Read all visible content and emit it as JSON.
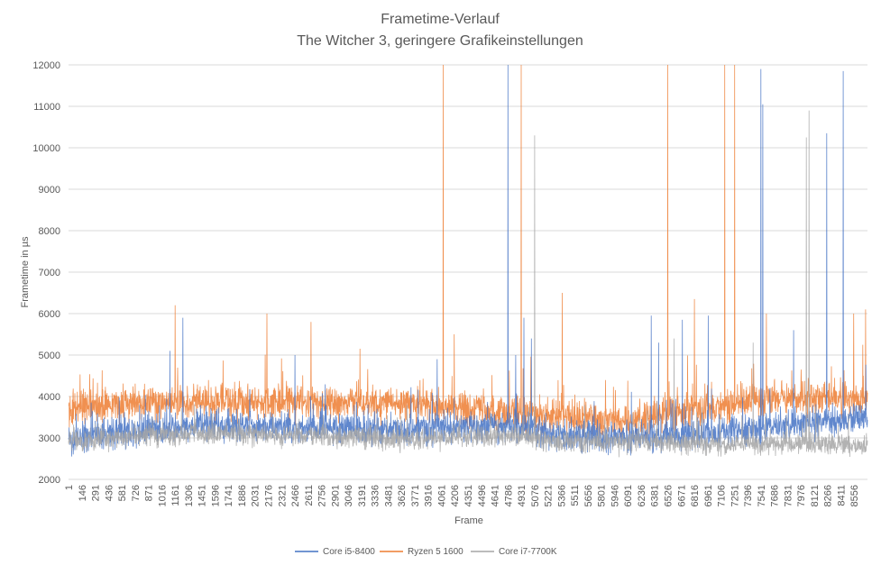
{
  "chart_data": {
    "type": "line",
    "title": "Frametime-Verlauf",
    "subtitle": "The Witcher 3, geringere Grafikeinstellungen",
    "xlabel": "Frame",
    "ylabel": "Frametime in µs",
    "ylim": [
      2000,
      12000
    ],
    "yticks": [
      2000,
      3000,
      4000,
      5000,
      6000,
      7000,
      8000,
      9000,
      10000,
      11000,
      12000
    ],
    "xlim": [
      1,
      8701
    ],
    "xtick_labels": [
      "1",
      "146",
      "291",
      "436",
      "581",
      "726",
      "871",
      "1016",
      "1161",
      "1306",
      "1451",
      "1596",
      "1741",
      "1886",
      "2031",
      "2176",
      "2321",
      "2466",
      "2611",
      "2756",
      "2901",
      "3046",
      "3191",
      "3336",
      "3481",
      "3626",
      "3771",
      "3916",
      "4061",
      "4206",
      "4351",
      "4496",
      "4641",
      "4786",
      "4931",
      "5076",
      "5221",
      "5366",
      "5511",
      "5656",
      "5801",
      "5946",
      "6091",
      "6236",
      "6381",
      "6526",
      "6671",
      "6816",
      "6961",
      "7106",
      "7251",
      "7396",
      "7541",
      "7686",
      "7831",
      "7976",
      "8121",
      "8266",
      "8411",
      "8556"
    ],
    "grid": true,
    "legend_position": "bottom",
    "series": [
      {
        "name": "Ryzen 5 1600",
        "color": "#ED7D31",
        "baseline": [
          [
            1,
            3700
          ],
          [
            800,
            3850
          ],
          [
            1500,
            3900
          ],
          [
            2500,
            3850
          ],
          [
            3500,
            3850
          ],
          [
            4200,
            3750
          ],
          [
            4800,
            3650
          ],
          [
            5500,
            3450
          ],
          [
            6000,
            3400
          ],
          [
            6500,
            3550
          ],
          [
            7000,
            3700
          ],
          [
            7500,
            3950
          ],
          [
            8000,
            3950
          ],
          [
            8701,
            4000
          ]
        ],
        "noise": 360,
        "spikes": [
          [
            1161,
            6200
          ],
          [
            2160,
            6000
          ],
          [
            2640,
            5800
          ],
          [
            4080,
            12000
          ],
          [
            4200,
            5500
          ],
          [
            4930,
            12000
          ],
          [
            5376,
            6500
          ],
          [
            6526,
            12000
          ],
          [
            6816,
            6350
          ],
          [
            7146,
            12000
          ],
          [
            7256,
            12000
          ],
          [
            7600,
            6000
          ],
          [
            8550,
            6000
          ],
          [
            8680,
            6100
          ]
        ]
      },
      {
        "name": "Core i5-8400",
        "color": "#4472C4",
        "baseline": [
          [
            1,
            2950
          ],
          [
            800,
            3200
          ],
          [
            1500,
            3300
          ],
          [
            2500,
            3250
          ],
          [
            3500,
            3200
          ],
          [
            4300,
            3250
          ],
          [
            4800,
            3300
          ],
          [
            5500,
            3050
          ],
          [
            6000,
            3000
          ],
          [
            6500,
            3050
          ],
          [
            7000,
            3100
          ],
          [
            7500,
            3200
          ],
          [
            8000,
            3350
          ],
          [
            8701,
            3450
          ]
        ],
        "noise": 330,
        "spikes": [
          [
            1106,
            5100
          ],
          [
            1246,
            5900
          ],
          [
            2466,
            5000
          ],
          [
            4016,
            4900
          ],
          [
            4786,
            12000
          ],
          [
            4870,
            5000
          ],
          [
            4960,
            5900
          ],
          [
            5040,
            5400
          ],
          [
            6346,
            5950
          ],
          [
            6426,
            5300
          ],
          [
            6686,
            5850
          ],
          [
            6966,
            5950
          ],
          [
            7541,
            11900
          ],
          [
            7561,
            11050
          ],
          [
            7896,
            5600
          ],
          [
            8256,
            10350
          ],
          [
            8436,
            11850
          ]
        ]
      },
      {
        "name": "Core i7-7700K",
        "color": "#A5A5A5",
        "baseline": [
          [
            1,
            2900
          ],
          [
            800,
            3050
          ],
          [
            1500,
            3100
          ],
          [
            2500,
            3050
          ],
          [
            3500,
            3000
          ],
          [
            4300,
            3000
          ],
          [
            4800,
            3050
          ],
          [
            5500,
            2900
          ],
          [
            6000,
            2900
          ],
          [
            6500,
            2900
          ],
          [
            7000,
            2850
          ],
          [
            7500,
            2850
          ],
          [
            8000,
            2850
          ],
          [
            8701,
            2850
          ]
        ],
        "noise": 230,
        "spikes": [
          [
            5076,
            10300
          ],
          [
            6596,
            5400
          ],
          [
            7456,
            5300
          ],
          [
            8036,
            10250
          ],
          [
            8066,
            10900
          ]
        ]
      }
    ]
  }
}
